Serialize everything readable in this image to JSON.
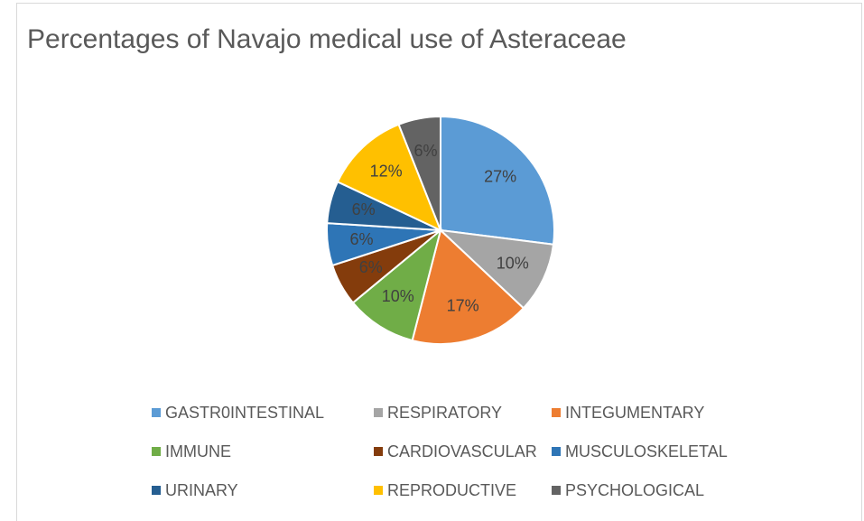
{
  "chart_data": {
    "type": "pie",
    "title": "Percentages of Navajo medical use of Asteraceae",
    "categories": [
      "GASTR0INTESTINAL",
      "RESPIRATORY",
      "INTEGUMENTARY",
      "IMMUNE",
      "CARDIOVASCULAR",
      "MUSCULOSKELETAL",
      "URINARY",
      "REPRODUCTIVE",
      "PSYCHOLOGICAL"
    ],
    "values": [
      27,
      10,
      17,
      10,
      6,
      6,
      6,
      12,
      6
    ],
    "value_labels": [
      "27%",
      "10%",
      "17%",
      "10%",
      "6%",
      "6%",
      "6%",
      "12%",
      "6%"
    ],
    "colors": [
      "#5b9bd5",
      "#a5a5a5",
      "#ed7d31",
      "#70ad47",
      "#843c0c",
      "#2e75b6",
      "#255e91",
      "#ffc000",
      "#636363"
    ],
    "legend": "bottom"
  }
}
